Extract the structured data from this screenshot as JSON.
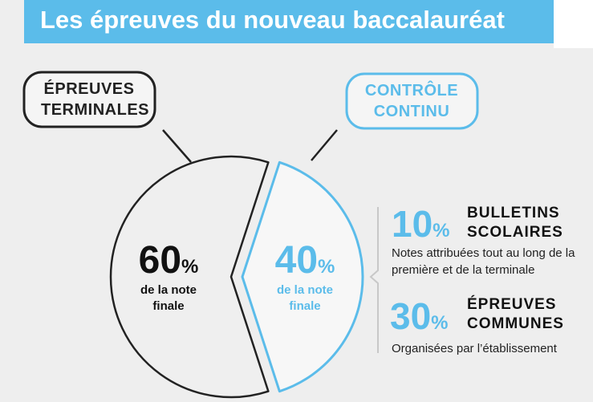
{
  "chart_data": {
    "type": "pie",
    "title": "Les épreuves du nouveau baccalauréat",
    "categories": [
      "ÉPREUVES TERMINALES",
      "CONTRÔLE CONTINU"
    ],
    "values": [
      60,
      40
    ],
    "unit": "%",
    "colors": [
      "#222222",
      "#5bbcea"
    ],
    "value_captions": [
      "de la note finale",
      "de la note finale"
    ]
  },
  "breakdown": {
    "unit": "%",
    "items": [
      {
        "value": 10,
        "title": "BULLETINS SCOLAIRES",
        "description": "Notes attribuées tout au long de la première et de la terminale"
      },
      {
        "value": 30,
        "title": "ÉPREUVES COMMUNES",
        "description": "Organisées par l’établissement"
      }
    ]
  }
}
